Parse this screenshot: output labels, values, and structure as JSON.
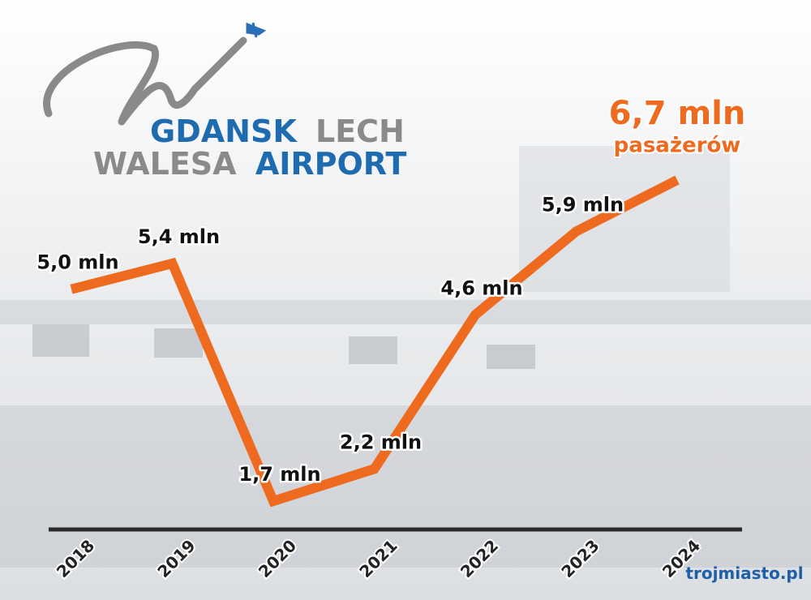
{
  "logo": {
    "line1": [
      "GDANSK",
      "LECH"
    ],
    "line2": [
      "WALESA",
      "AIRPORT"
    ]
  },
  "watermark": "trojmiasto.pl",
  "chart_data": {
    "type": "line",
    "categories": [
      "2018",
      "2019",
      "2020",
      "2021",
      "2022",
      "2023",
      "2024"
    ],
    "series": [
      {
        "name": "pasażerów",
        "color": "#ee6a1f",
        "values": [
          5.0,
          5.4,
          1.7,
          2.2,
          4.6,
          5.9,
          6.7
        ],
        "value_labels": [
          "5,0 mln",
          "5,4 mln",
          "1,7 mln",
          "2,2 mln",
          "4,6 mln",
          "5,9 mln",
          "6,7 mln"
        ]
      }
    ]
  }
}
